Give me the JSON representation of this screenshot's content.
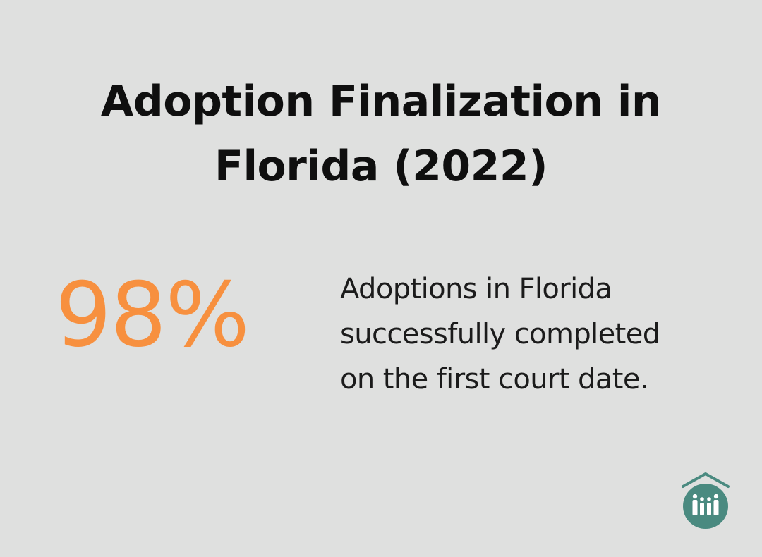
{
  "header": {
    "title_line1": "Adoption Finalization in",
    "title_line2": "Florida (2022)"
  },
  "stat": {
    "value": "98%",
    "description_lines": [
      "Adoptions in Florida",
      "successfully completed",
      "on the first court date."
    ]
  },
  "logo": {
    "icon": "house-family-logo-icon",
    "color": "#4a8a80"
  },
  "colors": {
    "background": "#dfe0df",
    "accent": "#f7903f",
    "text": "#0f0f0f"
  }
}
